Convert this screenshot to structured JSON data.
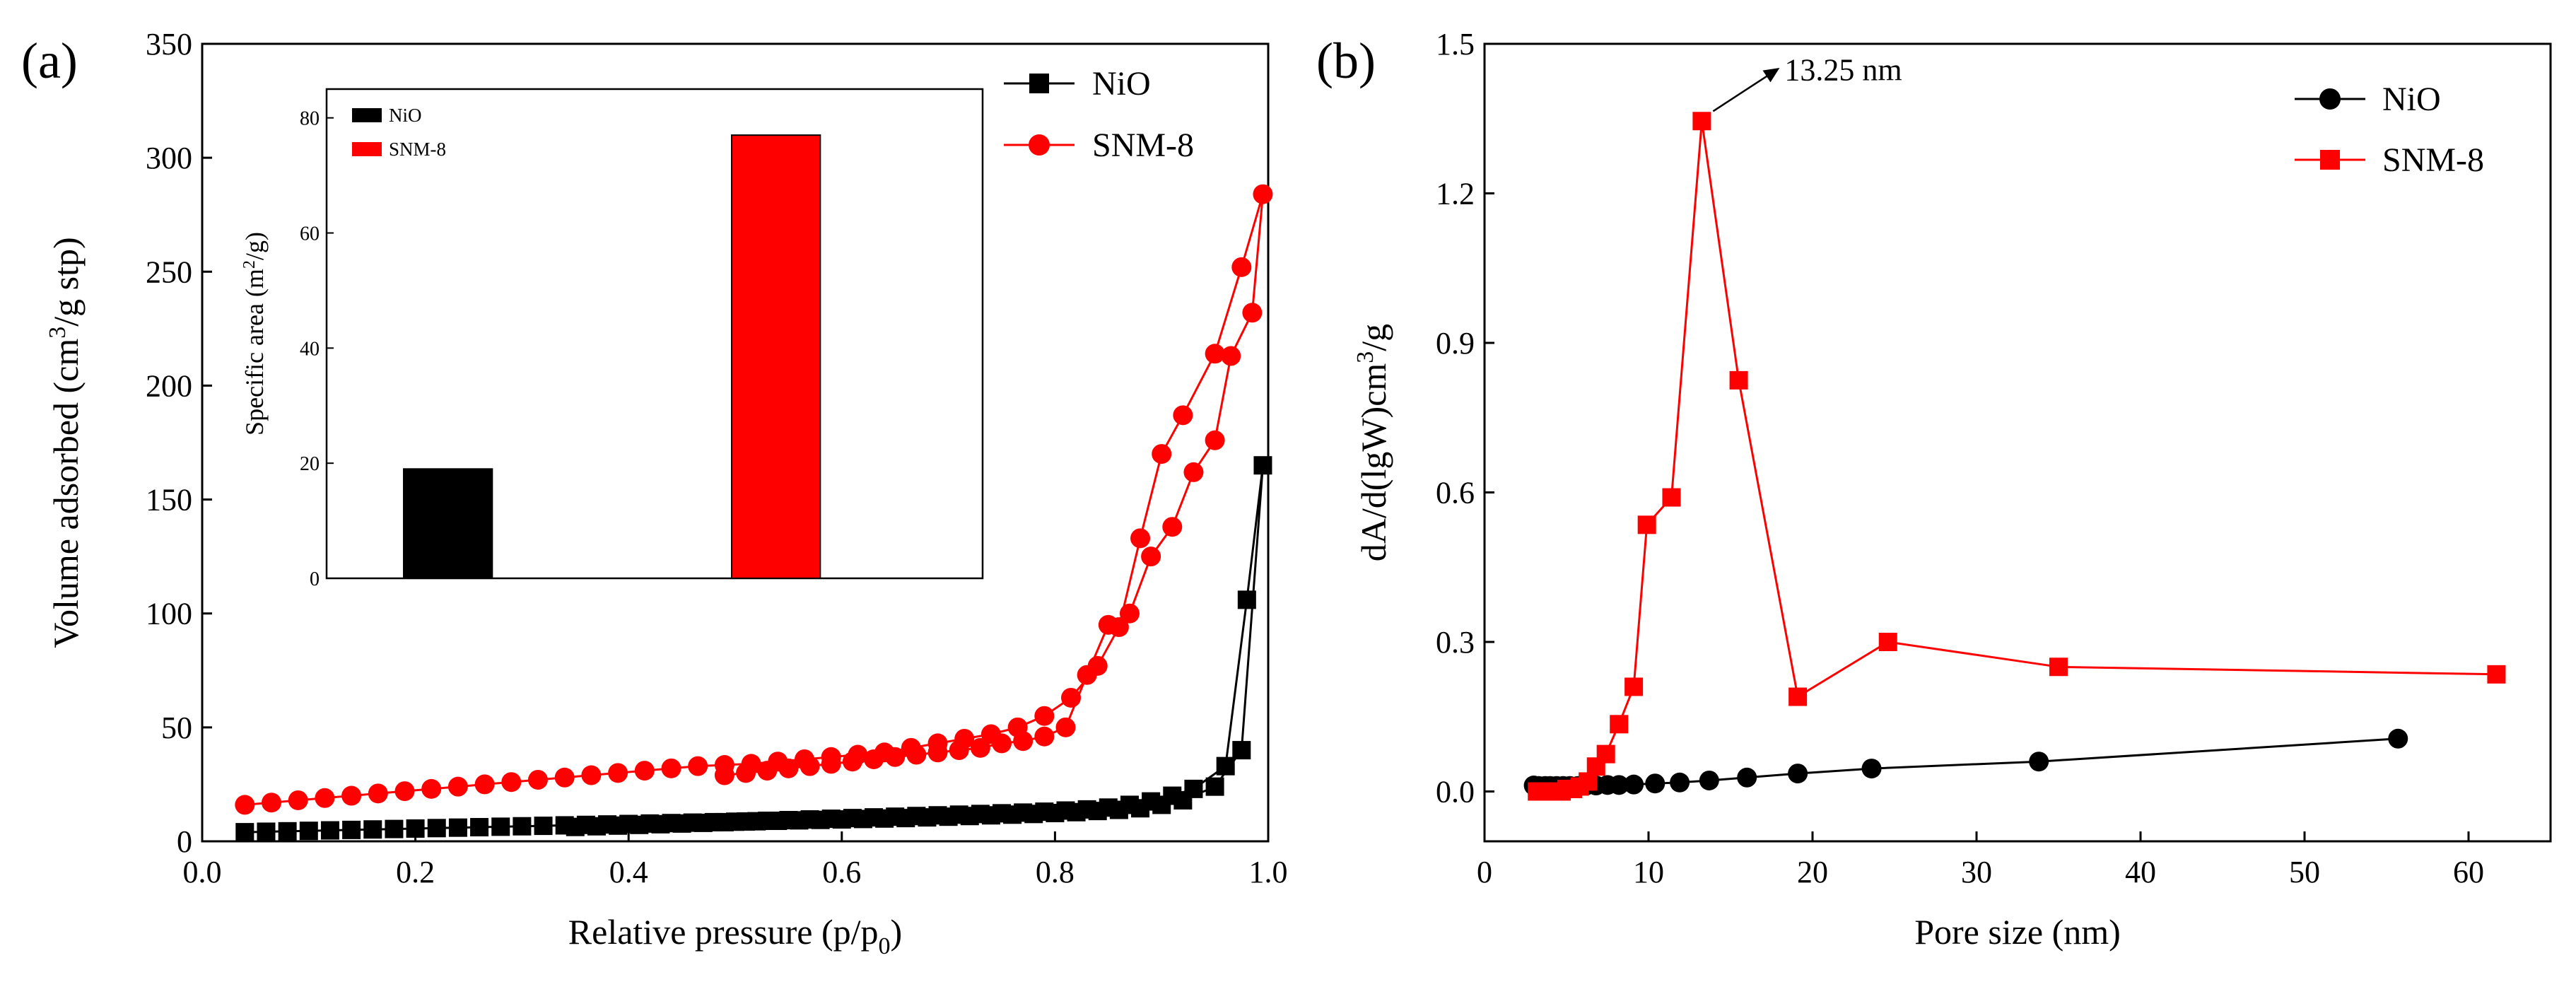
{
  "colors": {
    "nio": "#000000",
    "snm8": "#ff0000",
    "axis": "#000000"
  },
  "chart_data": [
    {
      "panel": "(a)",
      "type": "line",
      "title": "",
      "xlabel": "Relative pressure (p/p",
      "xlabel_sub": "0",
      "xlabel_end": ")",
      "ylabel_pre": "Volume adsorbed (cm",
      "ylabel_sup": "3",
      "ylabel_post": "/g stp)",
      "xlim": [
        0.0,
        1.0
      ],
      "ylim": [
        0,
        350
      ],
      "xticks": [
        "0.0",
        "0.2",
        "0.4",
        "0.6",
        "0.8",
        "1.0"
      ],
      "yticks": [
        "0",
        "50",
        "100",
        "150",
        "200",
        "250",
        "300",
        "350"
      ],
      "legend": [
        "NiO",
        "SNM-8"
      ],
      "series": [
        {
          "name": "NiO",
          "marker": "square",
          "x": [
            0.04,
            0.06,
            0.08,
            0.1,
            0.12,
            0.14,
            0.16,
            0.18,
            0.2,
            0.22,
            0.24,
            0.26,
            0.28,
            0.3,
            0.32,
            0.34,
            0.36,
            0.38,
            0.4,
            0.42,
            0.44,
            0.46,
            0.48,
            0.5,
            0.52,
            0.54,
            0.56,
            0.58,
            0.6,
            0.62,
            0.64,
            0.66,
            0.68,
            0.7,
            0.72,
            0.74,
            0.76,
            0.78,
            0.8,
            0.82,
            0.84,
            0.86,
            0.88,
            0.9,
            0.92,
            0.95,
            0.975,
            0.995,
            0.98,
            0.96,
            0.93,
            0.91,
            0.89,
            0.87,
            0.85,
            0.83,
            0.81,
            0.79,
            0.77,
            0.75,
            0.73,
            0.71,
            0.69,
            0.67,
            0.65,
            0.63,
            0.61,
            0.59,
            0.57,
            0.55,
            0.53,
            0.51,
            0.49,
            0.47,
            0.45,
            0.43,
            0.41,
            0.39,
            0.37,
            0.35
          ],
          "y": [
            4,
            4.2,
            4.4,
            4.6,
            4.8,
            5,
            5.2,
            5.4,
            5.6,
            5.8,
            6,
            6.2,
            6.4,
            6.6,
            6.8,
            7,
            7.2,
            7.4,
            7.6,
            7.8,
            8,
            8.2,
            8.4,
            8.6,
            8.8,
            9,
            9.2,
            9.4,
            9.6,
            9.8,
            10,
            10.2,
            10.5,
            10.8,
            11.1,
            11.4,
            11.7,
            12,
            12.4,
            12.8,
            13.3,
            13.8,
            14.5,
            16,
            18,
            24,
            40,
            165,
            106,
            33,
            23,
            20,
            17.5,
            16,
            14.8,
            14,
            13.5,
            13,
            12.6,
            12.3,
            12,
            11.7,
            11.4,
            11.1,
            10.8,
            10.5,
            10.2,
            9.9,
            9.6,
            9.3,
            9,
            8.7,
            8.4,
            8.1,
            7.8,
            7.5,
            7.2,
            6.9,
            6.6,
            6.3
          ]
        },
        {
          "name": "SNM-8",
          "marker": "circle",
          "x": [
            0.04,
            0.065,
            0.09,
            0.115,
            0.14,
            0.165,
            0.19,
            0.215,
            0.24,
            0.265,
            0.29,
            0.315,
            0.34,
            0.365,
            0.39,
            0.415,
            0.44,
            0.465,
            0.49,
            0.515,
            0.54,
            0.565,
            0.59,
            0.615,
            0.64,
            0.665,
            0.69,
            0.715,
            0.74,
            0.765,
            0.79,
            0.815,
            0.84,
            0.86,
            0.88,
            0.9,
            0.92,
            0.95,
            0.975,
            0.995,
            0.985,
            0.965,
            0.95,
            0.93,
            0.91,
            0.89,
            0.87,
            0.85,
            0.83,
            0.81,
            0.79,
            0.77,
            0.75,
            0.73,
            0.71,
            0.69,
            0.67,
            0.65,
            0.63,
            0.61,
            0.59,
            0.57,
            0.55,
            0.53,
            0.51,
            0.49
          ],
          "y": [
            16,
            17,
            18,
            19,
            20,
            21,
            22,
            23,
            24,
            25,
            26,
            27,
            28,
            29,
            30,
            31,
            32,
            33,
            33.5,
            34,
            35,
            36,
            37,
            38,
            39,
            41,
            43,
            45,
            47,
            50,
            55,
            63,
            77,
            94,
            133,
            170,
            187,
            214,
            252,
            284,
            232,
            213,
            176,
            162,
            138,
            125,
            100,
            95,
            73,
            50,
            46,
            44,
            43,
            41,
            40,
            39,
            38,
            37,
            36,
            35,
            34,
            33,
            32,
            31,
            30,
            29
          ]
        }
      ],
      "inset": {
        "type": "bar",
        "categories": [
          "NiO",
          "SNM-8"
        ],
        "values": [
          19,
          77
        ],
        "ylabel_pre": "Specific area (m",
        "ylabel_sup": "2",
        "ylabel_post": "/g)",
        "ylim": [
          0,
          85
        ],
        "yticks": [
          "0",
          "20",
          "40",
          "60",
          "80"
        ],
        "legend": [
          "NiO",
          "SNM-8"
        ]
      }
    },
    {
      "panel": "(b)",
      "type": "line",
      "title": "",
      "xlabel": "Pore size (nm)",
      "ylabel_pre": "dA/d(lgW)cm",
      "ylabel_sup": "3",
      "ylabel_post": "/g",
      "xlim": [
        0,
        65
      ],
      "ylim": [
        -0.1,
        1.5
      ],
      "xticks": [
        "0",
        "10",
        "20",
        "30",
        "40",
        "50",
        "60"
      ],
      "yticks": [
        "0.0",
        "0.3",
        "0.6",
        "0.9",
        "1.2",
        "1.5"
      ],
      "legend": [
        "NiO",
        "SNM-8"
      ],
      "annotation": "13.25 nm",
      "annotation_x": 13.25,
      "annotation_y": 1.345,
      "series": [
        {
          "name": "NiO",
          "marker": "circle",
          "x": [
            3.0,
            3.3,
            3.7,
            4.0,
            4.4,
            4.8,
            5.2,
            5.7,
            6.2,
            6.8,
            7.5,
            8.2,
            9.1,
            10.4,
            11.9,
            13.7,
            16.0,
            19.1,
            23.6,
            33.8,
            55.7
          ],
          "y": [
            0.012,
            0.011,
            0.011,
            0.011,
            0.011,
            0.011,
            0.011,
            0.011,
            0.012,
            0.012,
            0.013,
            0.013,
            0.014,
            0.016,
            0.018,
            0.022,
            0.028,
            0.036,
            0.046,
            0.06,
            0.106
          ]
        },
        {
          "name": "SNM-8",
          "marker": "square",
          "x": [
            3.2,
            3.6,
            4.0,
            4.3,
            4.7,
            5.0,
            5.4,
            5.8,
            6.3,
            6.8,
            7.4,
            8.2,
            9.1,
            9.9,
            11.4,
            13.25,
            15.5,
            19.1,
            24.6,
            35.0,
            61.7
          ],
          "y": [
            0.0,
            0.0,
            0.0,
            0.0,
            0.0,
            0.005,
            0.005,
            0.01,
            0.02,
            0.05,
            0.075,
            0.135,
            0.21,
            0.535,
            0.59,
            1.345,
            0.825,
            0.19,
            0.3,
            0.25,
            0.235
          ]
        }
      ]
    }
  ]
}
